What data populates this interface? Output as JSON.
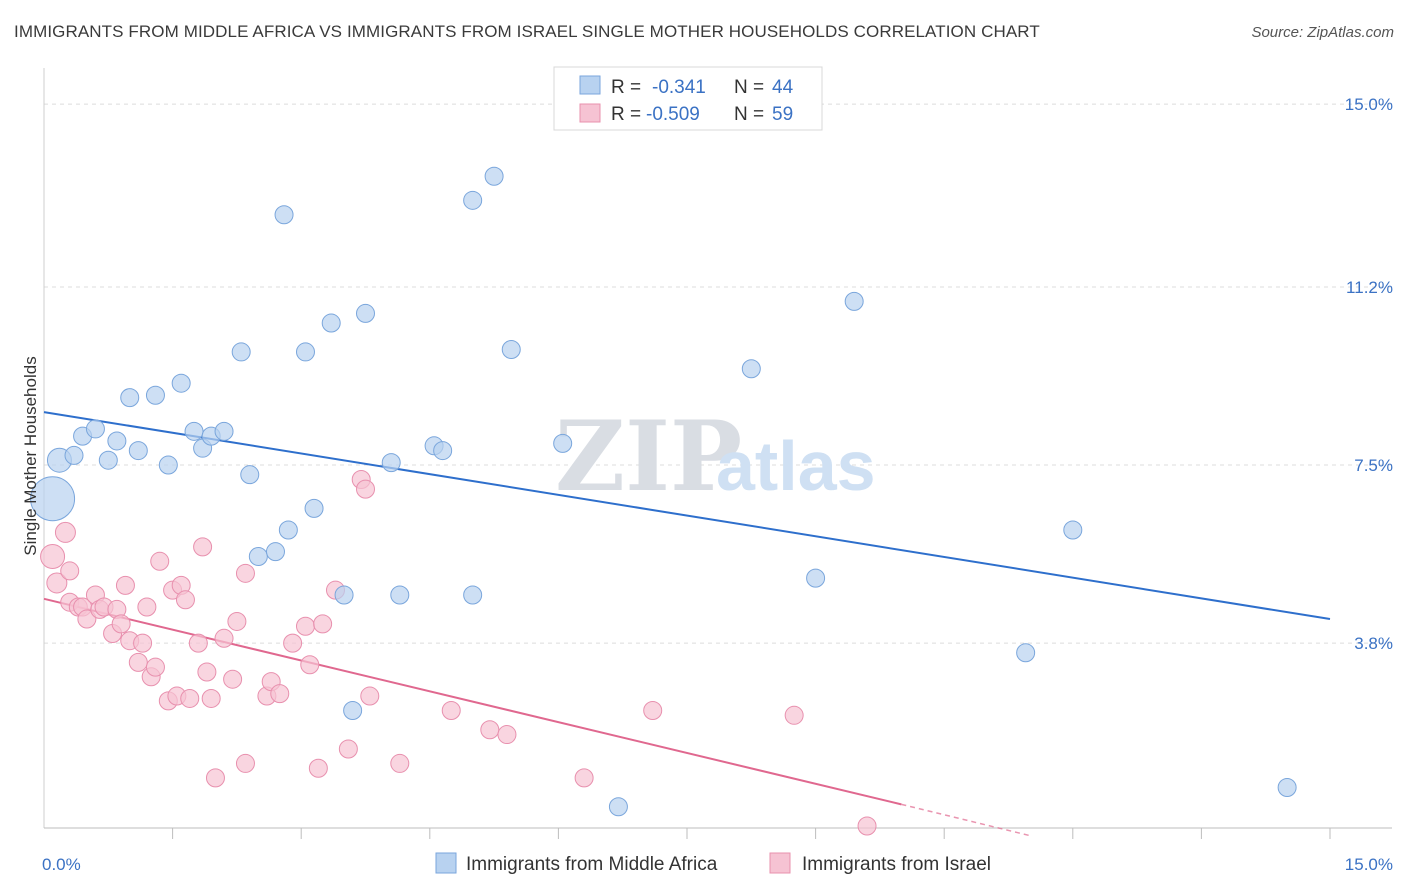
{
  "title": "IMMIGRANTS FROM MIDDLE AFRICA VS IMMIGRANTS FROM ISRAEL SINGLE MOTHER HOUSEHOLDS CORRELATION CHART",
  "source": "Source: ZipAtlas.com",
  "watermark": {
    "zip": "ZIP",
    "atlas": "atlas"
  },
  "colors": {
    "blue_fill": "#b8d2f0",
    "blue_stroke": "#7aa6dc",
    "blue_line": "#2e6fcc",
    "pink_fill": "#f6c3d3",
    "pink_stroke": "#e890ae",
    "pink_line": "#e0688f",
    "grid": "#dcdcdc",
    "tick_text": "#3b72c4"
  },
  "legend": {
    "rows": [
      {
        "r_label": "R =",
        "r_value": "-0.341",
        "n_label": "N =",
        "n_value": "44"
      },
      {
        "r_label": "R =",
        "r_value": "-0.509",
        "n_label": "N =",
        "n_value": "59"
      }
    ]
  },
  "chart_data": {
    "type": "scatter",
    "title": "IMMIGRANTS FROM MIDDLE AFRICA VS IMMIGRANTS FROM ISRAEL SINGLE MOTHER HOUSEHOLDS CORRELATION CHART",
    "xlabel": "",
    "ylabel": "Single Mother Households",
    "xlim": [
      0,
      15
    ],
    "ylim": [
      0,
      15.5
    ],
    "x_tick_labels": [
      "0.0%",
      "15.0%"
    ],
    "y_ticks": [
      3.8,
      7.5,
      11.2,
      15.0
    ],
    "y_tick_labels": [
      "3.8%",
      "7.5%",
      "11.2%",
      "15.0%"
    ],
    "grid": true,
    "legend_position": "top-center",
    "series": [
      {
        "name": "Immigrants from Middle Africa",
        "color": "#b8d2f0",
        "r": -0.341,
        "n": 44,
        "trend": {
          "x": [
            0.0,
            15.0
          ],
          "y": [
            8.6,
            4.3
          ]
        },
        "points": [
          [
            0.1,
            6.8,
            22
          ],
          [
            0.18,
            7.6,
            12
          ],
          [
            0.35,
            7.7,
            9
          ],
          [
            0.45,
            8.1,
            9
          ],
          [
            0.6,
            8.25,
            9
          ],
          [
            0.75,
            7.6,
            9
          ],
          [
            0.85,
            8.0,
            9
          ],
          [
            1.0,
            8.9,
            9
          ],
          [
            1.1,
            7.8,
            9
          ],
          [
            1.3,
            8.95,
            9
          ],
          [
            1.45,
            7.5,
            9
          ],
          [
            1.6,
            9.2,
            9
          ],
          [
            1.75,
            8.2,
            9
          ],
          [
            1.85,
            7.85,
            9
          ],
          [
            1.95,
            8.1,
            9
          ],
          [
            2.1,
            8.2,
            9
          ],
          [
            2.3,
            9.85,
            9
          ],
          [
            2.4,
            7.3,
            9
          ],
          [
            2.5,
            5.6,
            9
          ],
          [
            2.7,
            5.7,
            9
          ],
          [
            2.85,
            6.15,
            9
          ],
          [
            2.8,
            12.7,
            9
          ],
          [
            3.05,
            9.85,
            9
          ],
          [
            3.15,
            6.6,
            9
          ],
          [
            3.35,
            10.45,
            9
          ],
          [
            3.5,
            4.8,
            9
          ],
          [
            3.6,
            2.4,
            9
          ],
          [
            3.75,
            10.65,
            9
          ],
          [
            4.05,
            7.55,
            9
          ],
          [
            4.15,
            4.8,
            9
          ],
          [
            4.55,
            7.9,
            9
          ],
          [
            4.65,
            7.8,
            9
          ],
          [
            5.0,
            4.8,
            9
          ],
          [
            5.0,
            13.0,
            9
          ],
          [
            5.25,
            13.5,
            9
          ],
          [
            5.45,
            9.9,
            9
          ],
          [
            6.05,
            7.95,
            9
          ],
          [
            6.7,
            0.4,
            9
          ],
          [
            8.25,
            9.5,
            9
          ],
          [
            9.0,
            5.15,
            9
          ],
          [
            9.45,
            10.9,
            9
          ],
          [
            11.45,
            3.6,
            9
          ],
          [
            12.0,
            6.15,
            9
          ],
          [
            14.5,
            0.8,
            9
          ]
        ]
      },
      {
        "name": "Immigrants from Israel",
        "color": "#f6c3d3",
        "r": -0.509,
        "n": 59,
        "trend": {
          "x": [
            0.0,
            10.0
          ],
          "y": [
            4.72,
            0.45
          ]
        },
        "trend_dashed": {
          "x": [
            10.0,
            11.5
          ],
          "y": [
            0.45,
            -0.2
          ]
        },
        "points": [
          [
            0.1,
            5.6,
            12
          ],
          [
            0.15,
            5.05,
            10
          ],
          [
            0.25,
            6.1,
            10
          ],
          [
            0.3,
            5.3,
            9
          ],
          [
            0.3,
            4.65,
            9
          ],
          [
            0.4,
            4.55,
            9
          ],
          [
            0.45,
            4.55,
            9
          ],
          [
            0.5,
            4.3,
            9
          ],
          [
            0.6,
            4.8,
            9
          ],
          [
            0.65,
            4.5,
            9
          ],
          [
            0.7,
            4.55,
            9
          ],
          [
            0.8,
            4.0,
            9
          ],
          [
            0.85,
            4.5,
            9
          ],
          [
            0.9,
            4.2,
            9
          ],
          [
            0.95,
            5.0,
            9
          ],
          [
            1.0,
            3.85,
            9
          ],
          [
            1.1,
            3.4,
            9
          ],
          [
            1.15,
            3.8,
            9
          ],
          [
            1.2,
            4.55,
            9
          ],
          [
            1.25,
            3.1,
            9
          ],
          [
            1.3,
            3.3,
            9
          ],
          [
            1.35,
            5.5,
            9
          ],
          [
            1.45,
            2.6,
            9
          ],
          [
            1.5,
            4.9,
            9
          ],
          [
            1.55,
            2.7,
            9
          ],
          [
            1.6,
            5.0,
            9
          ],
          [
            1.65,
            4.7,
            9
          ],
          [
            1.7,
            2.65,
            9
          ],
          [
            1.8,
            3.8,
            9
          ],
          [
            1.85,
            5.8,
            9
          ],
          [
            1.9,
            3.2,
            9
          ],
          [
            1.95,
            2.65,
            9
          ],
          [
            2.0,
            1.0,
            9
          ],
          [
            2.1,
            3.9,
            9
          ],
          [
            2.2,
            3.05,
            9
          ],
          [
            2.25,
            4.25,
            9
          ],
          [
            2.35,
            5.25,
            9
          ],
          [
            2.35,
            1.3,
            9
          ],
          [
            2.6,
            2.7,
            9
          ],
          [
            2.65,
            3.0,
            9
          ],
          [
            2.75,
            2.75,
            9
          ],
          [
            2.9,
            3.8,
            9
          ],
          [
            3.05,
            4.15,
            9
          ],
          [
            3.1,
            3.35,
            9
          ],
          [
            3.2,
            1.2,
            9
          ],
          [
            3.25,
            4.2,
            9
          ],
          [
            3.4,
            4.9,
            9
          ],
          [
            3.55,
            1.6,
            9
          ],
          [
            3.7,
            7.2,
            9
          ],
          [
            3.75,
            7.0,
            9
          ],
          [
            3.8,
            2.7,
            9
          ],
          [
            4.15,
            1.3,
            9
          ],
          [
            4.75,
            2.4,
            9
          ],
          [
            5.2,
            2.0,
            9
          ],
          [
            5.4,
            1.9,
            9
          ],
          [
            6.3,
            1.0,
            9
          ],
          [
            7.1,
            2.4,
            9
          ],
          [
            8.75,
            2.3,
            9
          ],
          [
            9.6,
            0.0,
            9
          ]
        ]
      }
    ]
  }
}
